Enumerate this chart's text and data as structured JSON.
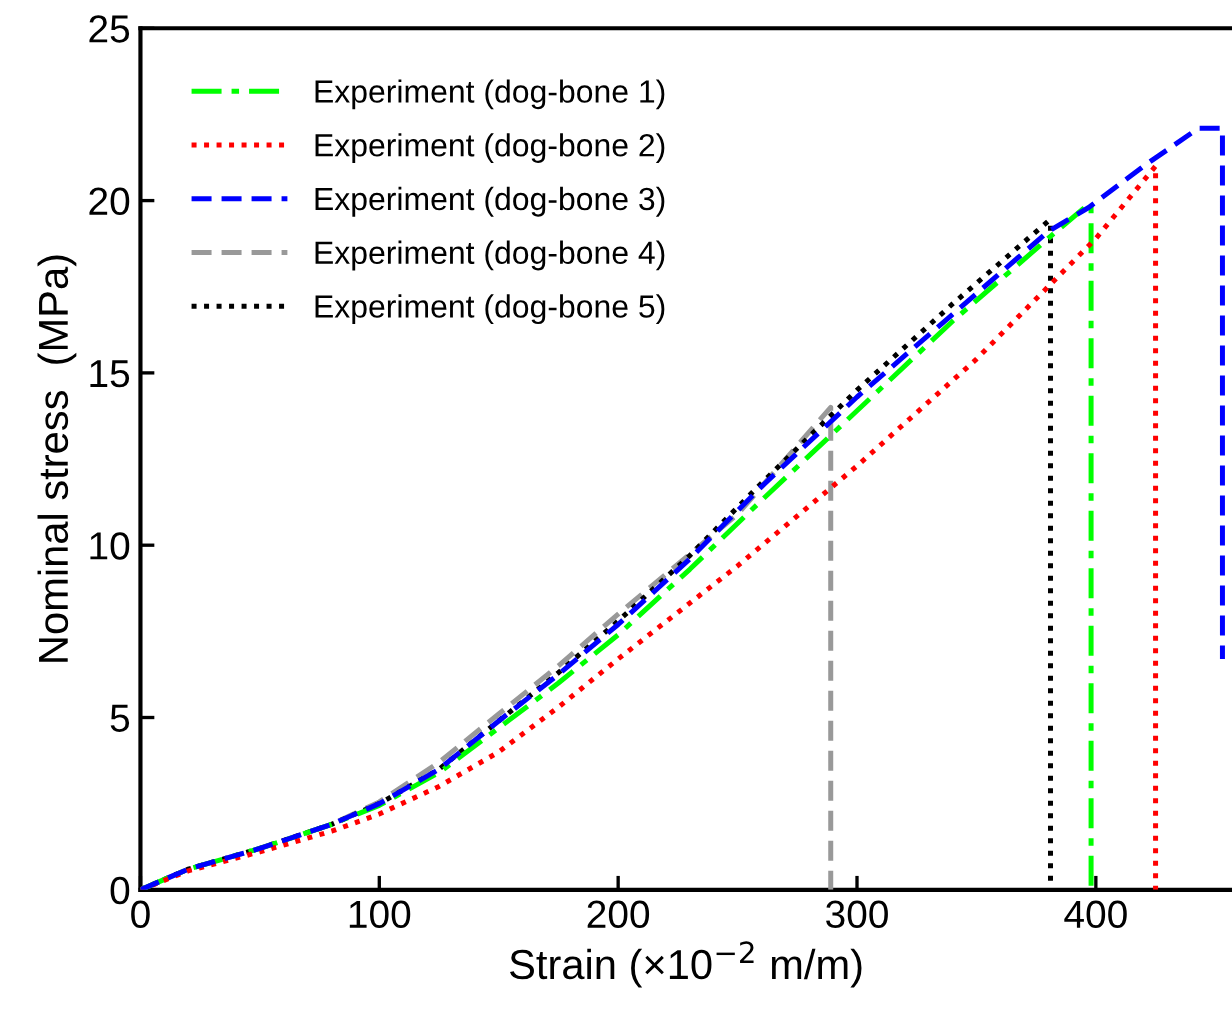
{
  "chart_data": {
    "type": "line",
    "xlabel": "Strain (×10$^{−2}$ m/m)",
    "ylabel": "Nominal stress  (MPa)",
    "xlim": [
      0,
      457
    ],
    "ylim": [
      0,
      25
    ],
    "xticks": [
      0,
      100,
      200,
      300,
      400
    ],
    "yticks": [
      0,
      5,
      10,
      15,
      20,
      25
    ],
    "grid": false,
    "legend": "top left",
    "marker": "none",
    "series": [
      {
        "name": "Experiment (dog-bone 1)",
        "color": "#00ff00",
        "line_style": "dashdot",
        "x": [
          0,
          20,
          50,
          80,
          100,
          125,
          150,
          175,
          200,
          230,
          260,
          300,
          340,
          380,
          397,
          398,
          398
        ],
        "values": [
          0,
          0.6,
          1.2,
          1.9,
          2.45,
          3.4,
          4.7,
          6.0,
          7.4,
          9.3,
          11.3,
          13.9,
          16.5,
          18.9,
          19.9,
          19.9,
          0
        ]
      },
      {
        "name": "Experiment (dog-bone 2)",
        "color": "#ff0000",
        "line_style": "dotted",
        "x": [
          0,
          20,
          50,
          80,
          100,
          125,
          150,
          175,
          200,
          250,
          300,
          350,
          400,
          425,
          425
        ],
        "values": [
          0,
          0.55,
          1.1,
          1.7,
          2.2,
          3.0,
          4.0,
          5.3,
          6.7,
          9.4,
          12.3,
          15.4,
          18.9,
          21.0,
          0
        ]
      },
      {
        "name": "Experiment (dog-bone 3)",
        "color": "#0000ff",
        "line_style": "dashed",
        "x": [
          0,
          20,
          50,
          80,
          100,
          125,
          150,
          175,
          200,
          230,
          260,
          300,
          340,
          380,
          397,
          420,
          443,
          453,
          453
        ],
        "values": [
          0,
          0.6,
          1.2,
          1.9,
          2.5,
          3.5,
          4.9,
          6.25,
          7.7,
          9.6,
          11.7,
          14.3,
          16.7,
          19.1,
          19.8,
          21.0,
          22.1,
          22.1,
          6.7
        ]
      },
      {
        "name": "Experiment (dog-bone 4)",
        "color": "#999999",
        "line_style": "dashed",
        "x": [
          0,
          20,
          50,
          80,
          100,
          125,
          150,
          175,
          200,
          250,
          289,
          289
        ],
        "values": [
          0,
          0.6,
          1.2,
          1.9,
          2.55,
          3.7,
          5.1,
          6.5,
          8.0,
          10.9,
          14.0,
          0
        ]
      },
      {
        "name": "Experiment (dog-bone 5)",
        "color": "#000000",
        "line_style": "dotted",
        "x": [
          0,
          20,
          50,
          80,
          100,
          125,
          150,
          175,
          200,
          230,
          260,
          300,
          340,
          380,
          381,
          381
        ],
        "values": [
          0,
          0.6,
          1.2,
          1.9,
          2.5,
          3.5,
          4.9,
          6.3,
          7.8,
          9.7,
          11.8,
          14.5,
          17.0,
          19.4,
          19.4,
          0
        ]
      }
    ]
  }
}
